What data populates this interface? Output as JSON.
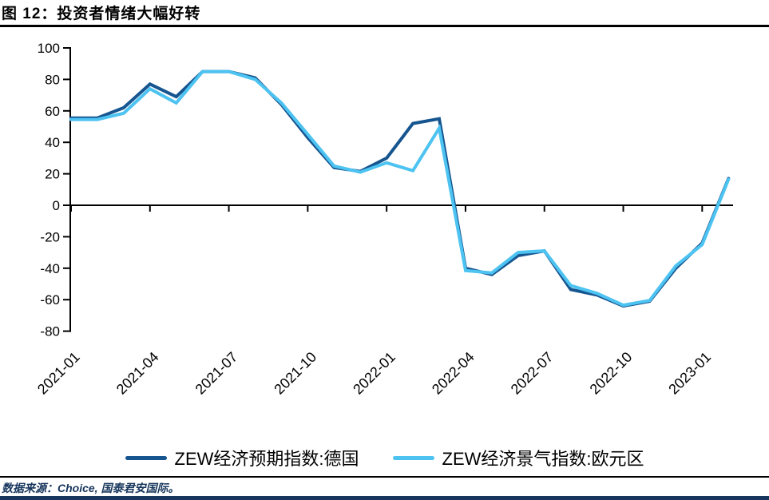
{
  "figure": {
    "title": "图 12：投资者情绪大幅好转",
    "source": "数据来源：Choice, 国泰君安国际。"
  },
  "legend": [
    {
      "label": "ZEW经济预期指数:德国",
      "color": "#16558F"
    },
    {
      "label": "ZEW经济景气指数:欧元区",
      "color": "#4DC3F1"
    }
  ],
  "colors": {
    "series_germany": "#16558F",
    "series_eurozone": "#4DC3F1",
    "axis": "#000000",
    "tick_label": "#000000",
    "source_text": "#17365D",
    "bottom_bar": "#17365D"
  },
  "chart_data": {
    "type": "line",
    "title": "投资者情绪大幅好转",
    "xlabel": "",
    "ylabel": "",
    "ylim": [
      -80,
      100
    ],
    "ytick_step": 20,
    "yticks": [
      100,
      80,
      60,
      40,
      20,
      0,
      -20,
      -40,
      -60,
      -80
    ],
    "grid": false,
    "legend_position": "bottom",
    "x": [
      "2021-01",
      "2021-02",
      "2021-03",
      "2021-04",
      "2021-05",
      "2021-06",
      "2021-07",
      "2021-08",
      "2021-09",
      "2021-10",
      "2021-11",
      "2021-12",
      "2022-01",
      "2022-02",
      "2022-03",
      "2022-04",
      "2022-05",
      "2022-06",
      "2022-07",
      "2022-08",
      "2022-09",
      "2022-10",
      "2022-11",
      "2022-12",
      "2023-01",
      "2023-02"
    ],
    "xticks_shown": [
      "2021-01",
      "2021-04",
      "2021-07",
      "2021-10",
      "2022-01",
      "2022-04",
      "2022-07",
      "2022-10",
      "2023-01"
    ],
    "series": [
      {
        "name": "ZEW经济预期指数:德国",
        "color": "#16558F",
        "values": [
          55.5,
          55.5,
          62,
          77,
          69,
          85,
          85,
          81,
          64,
          43,
          24,
          21.5,
          30,
          52,
          55,
          -40,
          -44,
          -32,
          -29,
          -53.5,
          -57,
          -64,
          -61,
          -40,
          -24,
          17
        ]
      },
      {
        "name": "ZEW经济景气指数:欧元区",
        "color": "#4DC3F1",
        "values": [
          54.5,
          54.5,
          58.5,
          74,
          65,
          85,
          85,
          80,
          65,
          45,
          25,
          21,
          27,
          22,
          49,
          -41.5,
          -43,
          -30,
          -29,
          -51,
          -56,
          -63.5,
          -60.5,
          -38.5,
          -25,
          16.5
        ]
      }
    ]
  }
}
